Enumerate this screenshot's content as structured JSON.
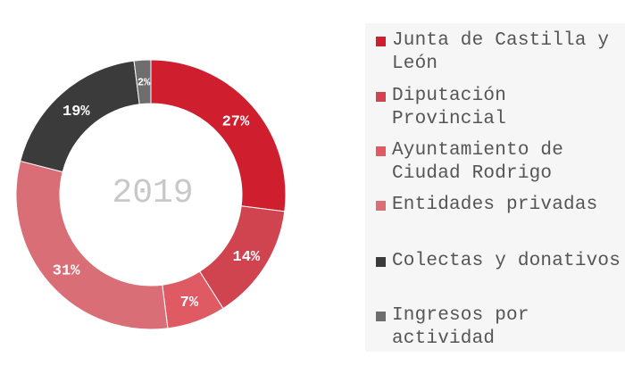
{
  "chart_data": {
    "type": "pie",
    "donut": true,
    "center_text": "2019",
    "legend_position": "right",
    "categories": [
      "Junta de Castilla y León",
      "Diputación Provincial",
      "Ayuntamiento de Ciudad Rodrigo",
      "Entidades privadas",
      "Colectas y donativos",
      "Ingresos por actividad"
    ],
    "values": [
      27,
      14,
      7,
      31,
      19,
      2
    ],
    "value_labels": [
      "27%",
      "14%",
      "7%",
      "31%",
      "19%",
      "2%"
    ],
    "colors": [
      "#cf1f2e",
      "#cf444f",
      "#df5a63",
      "#da6e77",
      "#3b3b3b",
      "#6e6e6e"
    ]
  }
}
